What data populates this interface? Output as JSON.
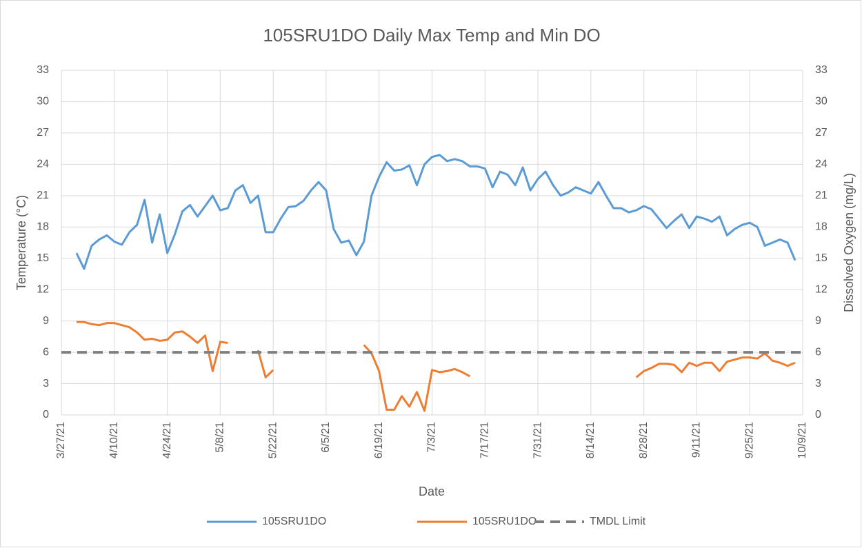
{
  "chart_data": {
    "type": "line",
    "title": "105SRU1DO Daily Max Temp and Min DO",
    "xlabel": "Date",
    "ylabel": "Temperature (°C)",
    "y2label": "Dissolved Oxygen (mg/L)",
    "xlim": [
      "3/27/21",
      "10/9/21"
    ],
    "xticks": [
      "3/27/21",
      "4/10/21",
      "4/24/21",
      "5/8/21",
      "5/22/21",
      "6/5/21",
      "6/19/21",
      "7/3/21",
      "7/17/21",
      "7/31/21",
      "8/14/21",
      "8/28/21",
      "9/11/21",
      "9/25/21",
      "10/9/21"
    ],
    "ylim": [
      0,
      33
    ],
    "yticks": [
      0,
      3,
      6,
      9,
      12,
      15,
      18,
      21,
      24,
      27,
      30,
      33
    ],
    "y2lim": [
      0,
      33
    ],
    "y2ticks": [
      0,
      3,
      6,
      9,
      12,
      15,
      18,
      21,
      24,
      27,
      30,
      33
    ],
    "grid": true,
    "legend": "bottom",
    "x": [
      "3/31/21",
      "4/2/21",
      "4/4/21",
      "4/6/21",
      "4/8/21",
      "4/10/21",
      "4/12/21",
      "4/14/21",
      "4/16/21",
      "4/18/21",
      "4/20/21",
      "4/22/21",
      "4/24/21",
      "4/26/21",
      "4/28/21",
      "4/30/21",
      "5/2/21",
      "5/4/21",
      "5/6/21",
      "5/8/21",
      "5/10/21",
      "5/12/21",
      "5/14/21",
      "5/16/21",
      "5/18/21",
      "5/20/21",
      "5/22/21",
      "5/24/21",
      "5/26/21",
      "5/28/21",
      "5/30/21",
      "6/1/21",
      "6/3/21",
      "6/5/21",
      "6/7/21",
      "6/9/21",
      "6/11/21",
      "6/13/21",
      "6/15/21",
      "6/17/21",
      "6/19/21",
      "6/21/21",
      "6/23/21",
      "6/25/21",
      "6/27/21",
      "6/29/21",
      "7/1/21",
      "7/3/21",
      "7/5/21",
      "7/7/21",
      "7/9/21",
      "7/11/21",
      "7/13/21",
      "7/15/21",
      "7/17/21",
      "7/19/21",
      "7/21/21",
      "7/23/21",
      "7/25/21",
      "7/27/21",
      "7/29/21",
      "7/31/21",
      "8/2/21",
      "8/4/21",
      "8/6/21",
      "8/8/21",
      "8/10/21",
      "8/12/21",
      "8/14/21",
      "8/16/21",
      "8/18/21",
      "8/20/21",
      "8/22/21",
      "8/24/21",
      "8/26/21",
      "8/28/21",
      "8/30/21",
      "9/1/21",
      "9/3/21",
      "9/5/21",
      "9/7/21",
      "9/9/21",
      "9/11/21",
      "9/13/21",
      "9/15/21",
      "9/17/21",
      "9/19/21",
      "9/21/21",
      "9/23/21",
      "9/25/21",
      "9/27/21",
      "9/29/21",
      "10/1/21",
      "10/3/21",
      "10/5/21",
      "10/7/21"
    ],
    "series": [
      {
        "name": "105SRU1DO",
        "color": "#5b9bd5",
        "axis": "y",
        "dash": false,
        "values": [
          15.5,
          14.0,
          16.2,
          16.8,
          17.2,
          16.6,
          16.3,
          17.5,
          18.2,
          20.6,
          16.5,
          19.2,
          15.5,
          17.3,
          19.5,
          20.1,
          19.0,
          20.0,
          21.0,
          19.6,
          19.8,
          21.5,
          22.0,
          20.3,
          21.0,
          17.5,
          17.5,
          18.8,
          19.9,
          20.0,
          20.5,
          21.5,
          22.3,
          21.5,
          17.8,
          16.5,
          16.7,
          15.3,
          16.6,
          21.0,
          22.8,
          24.2,
          23.4,
          23.5,
          23.9,
          22.0,
          24.0,
          24.7,
          24.9,
          24.3,
          24.5,
          24.3,
          23.8,
          23.8,
          23.6,
          21.8,
          23.3,
          23.0,
          22.0,
          23.7,
          21.5,
          22.6,
          23.3,
          22.0,
          21.0,
          21.3,
          21.8,
          21.5,
          21.2,
          22.3,
          21.0,
          19.8,
          19.8,
          19.4,
          19.6,
          20.0,
          19.7,
          18.8,
          17.9,
          18.6,
          19.2,
          17.9,
          19.0,
          18.8,
          18.5,
          19.0,
          17.2,
          17.8,
          18.2,
          18.4,
          18.0,
          16.2,
          16.5,
          16.8,
          16.5,
          14.8
        ]
      },
      {
        "name": "105SRU1DO",
        "color": "#ed7d31",
        "axis": "y2",
        "dash": false,
        "values": [
          8.9,
          8.9,
          8.7,
          8.6,
          8.8,
          8.8,
          8.6,
          8.4,
          7.9,
          7.2,
          7.3,
          7.1,
          7.2,
          7.9,
          8.0,
          7.5,
          6.9,
          7.6,
          4.2,
          7.0,
          6.9,
          null,
          null,
          null,
          6.2,
          3.6,
          4.3,
          null,
          null,
          null,
          null,
          null,
          null,
          null,
          null,
          null,
          null,
          null,
          6.7,
          5.9,
          4.2,
          0.5,
          0.5,
          1.8,
          0.8,
          2.2,
          0.4,
          4.3,
          4.1,
          4.2,
          4.4,
          4.1,
          3.7,
          null,
          null,
          null,
          null,
          null,
          null,
          null,
          null,
          null,
          null,
          null,
          null,
          null,
          null,
          null,
          null,
          null,
          null,
          null,
          null,
          null,
          3.6,
          4.2,
          4.5,
          4.9,
          4.9,
          4.8,
          4.1,
          5.0,
          4.7,
          5.0,
          5.0,
          4.2,
          5.1,
          5.3,
          5.5,
          5.5,
          5.4,
          5.9,
          5.2,
          5.0,
          4.7,
          5.0
        ]
      },
      {
        "name": "TMDL Limit",
        "color": "#7f7f7f",
        "axis": "y2",
        "dash": true,
        "x": [
          "3/27/21",
          "10/9/21"
        ],
        "values": [
          6,
          6
        ]
      }
    ]
  }
}
